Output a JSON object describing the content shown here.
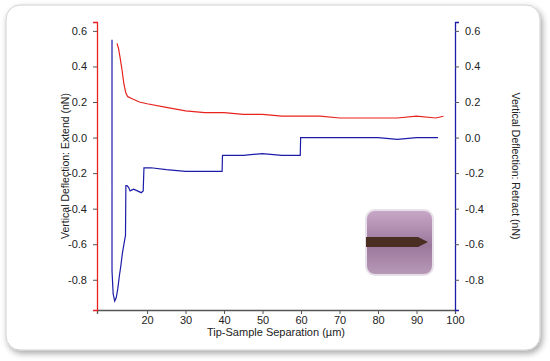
{
  "chart_data": {
    "type": "line",
    "xlabel": "Tip-Sample Separation (µm)",
    "ylabel": "Vertical Deflection: Extend (nN)",
    "y2label": "Vertical Deflection: Retract (nN)",
    "xlim": [
      7,
      100
    ],
    "xticks": [
      20,
      30,
      40,
      50,
      60,
      70,
      80,
      90,
      100
    ],
    "ylim": [
      -0.97,
      0.65
    ],
    "yticks": [
      -0.8,
      -0.6,
      -0.4,
      -0.2,
      {
        "value": 0,
        "label": "0.0"
      },
      0.2,
      0.4,
      0.6
    ],
    "y2lim": [
      -0.97,
      0.65
    ],
    "y2ticks": [
      -0.8,
      -0.6,
      -0.4,
      -0.2,
      {
        "value": 0,
        "label": "0.0"
      },
      0.2,
      0.4,
      0.6
    ],
    "grid": false,
    "series": [
      {
        "color": "#e8231e",
        "x": [
          12.2,
          12.6,
          13.0,
          13.5,
          14.0,
          14.5,
          15,
          16,
          18,
          20,
          25,
          30,
          35,
          40,
          45,
          50,
          55,
          60,
          65,
          70,
          75,
          80,
          85,
          90,
          95,
          97
        ],
        "values": [
          0.53,
          0.5,
          0.45,
          0.38,
          0.3,
          0.25,
          0.23,
          0.22,
          0.2,
          0.19,
          0.17,
          0.15,
          0.14,
          0.14,
          0.13,
          0.13,
          0.12,
          0.12,
          0.12,
          0.11,
          0.11,
          0.11,
          0.11,
          0.12,
          0.11,
          0.12
        ]
      },
      {
        "color": "#1c1ca8",
        "axis": "y2",
        "x": [
          10.9,
          10.9,
          11.2,
          11.6,
          12.0,
          12.4,
          12.8,
          13.2,
          13.6,
          14.0,
          14.4,
          14.5,
          14.8,
          15.2,
          15.6,
          16.5,
          17.5,
          18.5,
          19.0,
          19.2,
          21,
          25,
          30,
          35,
          39.5,
          39.6,
          45,
          50,
          55,
          59.8,
          59.9,
          65,
          70,
          75,
          80,
          85,
          90,
          95.6
        ],
        "values": [
          0.55,
          -0.75,
          -0.88,
          -0.92,
          -0.9,
          -0.85,
          -0.78,
          -0.72,
          -0.65,
          -0.6,
          -0.55,
          -0.27,
          -0.27,
          -0.28,
          -0.3,
          -0.29,
          -0.3,
          -0.31,
          -0.3,
          -0.17,
          -0.17,
          -0.18,
          -0.19,
          -0.19,
          -0.19,
          -0.1,
          -0.1,
          -0.09,
          -0.1,
          -0.1,
          0.0,
          0.0,
          0.0,
          0.0,
          0.0,
          -0.01,
          0.0,
          0.0
        ]
      }
    ]
  }
}
